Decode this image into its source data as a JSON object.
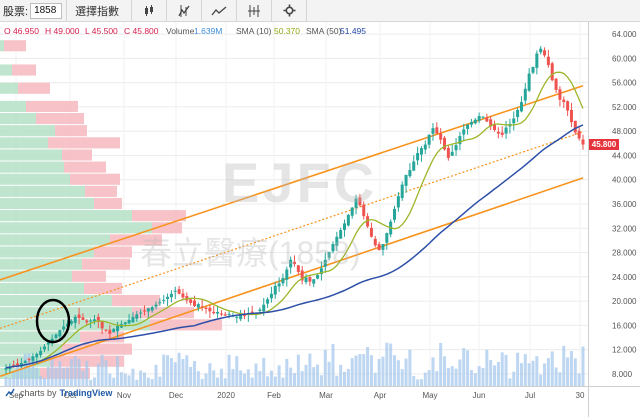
{
  "toolbar": {
    "symbol_label": "股票:",
    "symbol_value": "1858",
    "indicators_label": "選擇指數",
    "icons": [
      "candles-icon",
      "compare-icon",
      "line-chart-icon",
      "range-icon",
      "gear-icon"
    ]
  },
  "legend": {
    "open": "O 46.950",
    "high": "H 49.000",
    "low": "L 45.500",
    "close": "C 45.800",
    "volume_label": "Volume",
    "volume_value": "1.639M",
    "sma10_label": "SMA (10)",
    "sma10_value": "50.370",
    "sma50_label": "SMA (50)",
    "sma50_value": "51.495"
  },
  "watermark": {
    "symbol": "EJFC",
    "name": "春立醫療(1858)"
  },
  "last_price": "45.800",
  "credit": {
    "prefix": "charts by",
    "brand": "TradingView"
  },
  "colors": {
    "up": "#26a69a",
    "down": "#ef5350",
    "sma10": "#9cb62a",
    "sma50": "#2c4fa8",
    "channel": "#f7931e",
    "volume": "#a7c8ec",
    "vp_up": "#b4e0c5",
    "vp_down": "#f6bcc2",
    "price_tag": "#e6343c"
  },
  "chart_data": {
    "type": "candlestick",
    "y_ticks": [
      "64.000",
      "60.000",
      "56.000",
      "52.000",
      "48.000",
      "44.000",
      "40.000",
      "36.000",
      "32.000",
      "28.000",
      "24.000",
      "20.000",
      "16.000",
      "12.000",
      "8.000"
    ],
    "ylim": [
      6,
      66
    ],
    "x_ticks": [
      "Sep",
      "Oct",
      "Nov",
      "Dec",
      "2020",
      "Feb",
      "Mar",
      "Apr",
      "May",
      "Jun",
      "Jul",
      "30"
    ],
    "closes": [
      9.0,
      9.2,
      9.5,
      9.4,
      9.8,
      10.1,
      10.4,
      10.9,
      11.3,
      11.8,
      12.5,
      13.2,
      13.8,
      14.5,
      15.2,
      15.8,
      16.3,
      16.7,
      17.4,
      17.2,
      16.9,
      16.5,
      16.8,
      17.0,
      16.6,
      15.5,
      15.1,
      14.6,
      15.4,
      15.9,
      16.2,
      16.5,
      16.9,
      17.4,
      17.8,
      18.1,
      18.4,
      18.8,
      19.0,
      19.4,
      19.8,
      20.2,
      20.7,
      21.2,
      21.7,
      21.2,
      20.6,
      20.1,
      19.7,
      19.2,
      19.5,
      19.0,
      18.7,
      18.3,
      18.0,
      18.2,
      17.8,
      17.6,
      17.9,
      17.6,
      17.4,
      17.9,
      17.6,
      17.9,
      18.2,
      18.0,
      18.6,
      19.4,
      20.3,
      21.2,
      22.5,
      22.9,
      23.8,
      25.2,
      26.8,
      26.1,
      24.8,
      23.4,
      23.9,
      23.2,
      23.6,
      24.3,
      25.4,
      26.8,
      28.1,
      29.4,
      30.6,
      31.7,
      32.8,
      34.2,
      35.4,
      36.9,
      35.8,
      34.0,
      32.3,
      30.6,
      29.2,
      28.4,
      29.4,
      31.2,
      33.1,
      35.2,
      37.3,
      39.2,
      40.8,
      41.6,
      43.0,
      44.4,
      45.2,
      45.8,
      47.4,
      48.5,
      47.6,
      46.6,
      45.0,
      43.6,
      44.6,
      45.7,
      47.2,
      48.3,
      49.1,
      49.5,
      49.9,
      50.5,
      50.4,
      49.6,
      48.8,
      48.2,
      47.6,
      47.4,
      48.6,
      49.2,
      50.1,
      51.5,
      52.8,
      55.0,
      57.5,
      58.6,
      60.8,
      61.6,
      60.5,
      58.9,
      56.4,
      54.8,
      53.2,
      52.8,
      51.4,
      49.5,
      47.8,
      46.8,
      45.8
    ],
    "sma10": "computed",
    "sma50": "computed"
  }
}
